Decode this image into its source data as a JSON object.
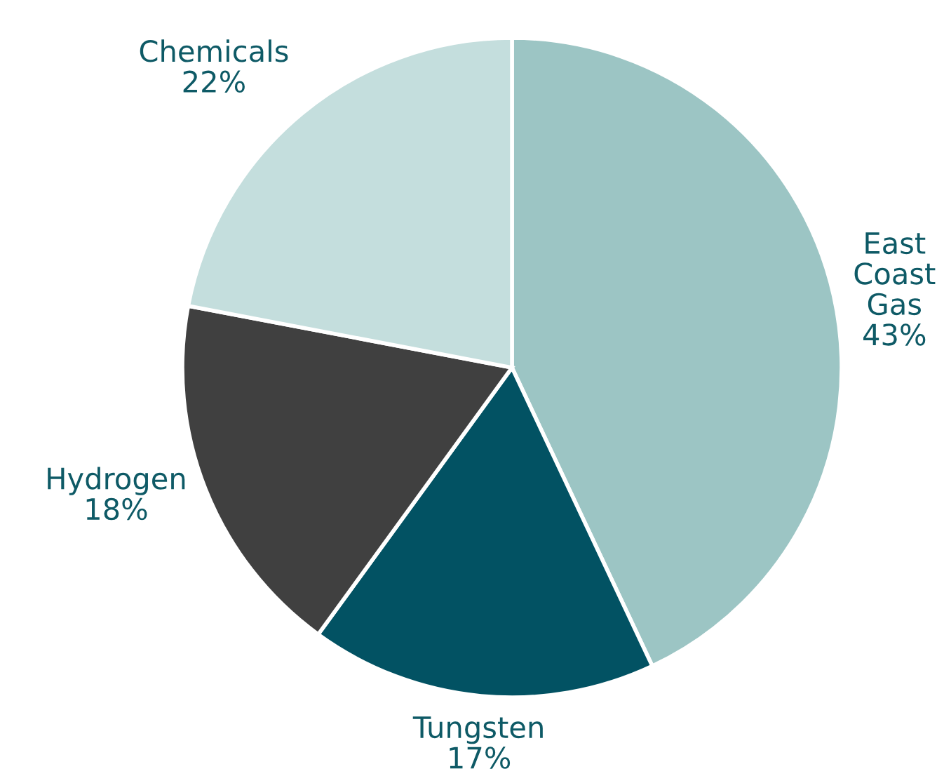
{
  "chart_data": {
    "type": "pie",
    "categories": [
      "East\nCoast\nGas",
      "Tungsten",
      "Hydrogen",
      "Chemicals"
    ],
    "values": [
      43,
      17,
      18,
      22
    ],
    "value_labels": [
      "43%",
      "17%",
      "18%",
      "22%"
    ],
    "colors": [
      "#9cc5c4",
      "#025263",
      "#404040",
      "#c4dedd"
    ]
  }
}
